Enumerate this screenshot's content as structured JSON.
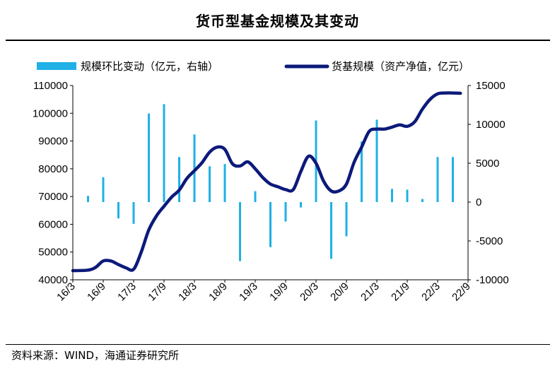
{
  "title": "货币型基金规模及其变动",
  "source": "资料来源：WIND，海通证券研究所",
  "colors": {
    "bar": "#1fb0e6",
    "line": "#0c1a7a",
    "axis": "#000000"
  },
  "chart_data": {
    "type": "bar+line",
    "legend": [
      {
        "name": "规模环比变动（亿元，右轴）",
        "kind": "bar"
      },
      {
        "name": "货基规模（资产净值，亿元）",
        "kind": "line"
      }
    ],
    "legend_position": "top",
    "grid": false,
    "left_axis": {
      "min": 40000,
      "max": 110000,
      "ticks": [
        40000,
        50000,
        60000,
        70000,
        80000,
        90000,
        100000,
        110000
      ]
    },
    "right_axis": {
      "min": -10000,
      "max": 15000,
      "ticks": [
        -10000,
        -5000,
        0,
        5000,
        10000,
        15000
      ]
    },
    "x_labels": [
      "16/3",
      "16/9",
      "17/3",
      "17/9",
      "18/3",
      "18/9",
      "19/3",
      "19/9",
      "20/3",
      "20/9",
      "21/3",
      "21/9",
      "22/3",
      "22/9"
    ],
    "bars": [
      {
        "x": 1,
        "value": 800
      },
      {
        "x": 2,
        "value": 3200
      },
      {
        "x": 3,
        "value": -2100
      },
      {
        "x": 4,
        "value": -2800
      },
      {
        "x": 5,
        "value": 11400
      },
      {
        "x": 6,
        "value": 12600
      },
      {
        "x": 7,
        "value": 5800
      },
      {
        "x": 8,
        "value": 8700
      },
      {
        "x": 9,
        "value": 4600
      },
      {
        "x": 10,
        "value": 4900
      },
      {
        "x": 11,
        "value": -7600
      },
      {
        "x": 12,
        "value": 1400
      },
      {
        "x": 13,
        "value": -5800
      },
      {
        "x": 14,
        "value": -2500
      },
      {
        "x": 15,
        "value": -700
      },
      {
        "x": 16,
        "value": 10500
      },
      {
        "x": 17,
        "value": -7300
      },
      {
        "x": 18,
        "value": -4400
      },
      {
        "x": 19,
        "value": 7800
      },
      {
        "x": 20,
        "value": 10600
      },
      {
        "x": 21,
        "value": 1700
      },
      {
        "x": 22,
        "value": 1600
      },
      {
        "x": 23,
        "value": 400
      },
      {
        "x": 24,
        "value": 5800
      },
      {
        "x": 25,
        "value": 5800
      }
    ],
    "line": [
      [
        0,
        43300
      ],
      [
        1,
        43500
      ],
      [
        1.5,
        44500
      ],
      [
        2,
        46800
      ],
      [
        2.5,
        46800
      ],
      [
        3,
        45500
      ],
      [
        3.5,
        44300
      ],
      [
        4,
        43800
      ],
      [
        4.5,
        50000
      ],
      [
        5,
        58000
      ],
      [
        5.5,
        63000
      ],
      [
        6,
        66500
      ],
      [
        6.5,
        69800
      ],
      [
        7,
        72300
      ],
      [
        7.5,
        76500
      ],
      [
        8,
        79300
      ],
      [
        8.5,
        82200
      ],
      [
        9,
        86000
      ],
      [
        9.5,
        87800
      ],
      [
        10,
        87000
      ],
      [
        10.5,
        81800
      ],
      [
        11,
        81000
      ],
      [
        11.5,
        82500
      ],
      [
        12,
        80000
      ],
      [
        12.5,
        76800
      ],
      [
        13,
        74500
      ],
      [
        13.5,
        73500
      ],
      [
        14,
        72500
      ],
      [
        14.5,
        72500
      ],
      [
        15,
        79000
      ],
      [
        15.5,
        84500
      ],
      [
        16,
        82000
      ],
      [
        16.5,
        75500
      ],
      [
        17,
        72000
      ],
      [
        17.5,
        72000
      ],
      [
        18,
        74500
      ],
      [
        18.5,
        82300
      ],
      [
        19,
        87800
      ],
      [
        19.5,
        93500
      ],
      [
        20,
        94300
      ],
      [
        20.5,
        94300
      ],
      [
        21,
        95000
      ],
      [
        21.5,
        95800
      ],
      [
        22,
        95300
      ],
      [
        22.5,
        97000
      ],
      [
        23,
        101500
      ],
      [
        23.5,
        105000
      ],
      [
        24,
        107000
      ],
      [
        24.5,
        107300
      ],
      [
        25,
        107300
      ],
      [
        25.5,
        107200
      ]
    ]
  }
}
